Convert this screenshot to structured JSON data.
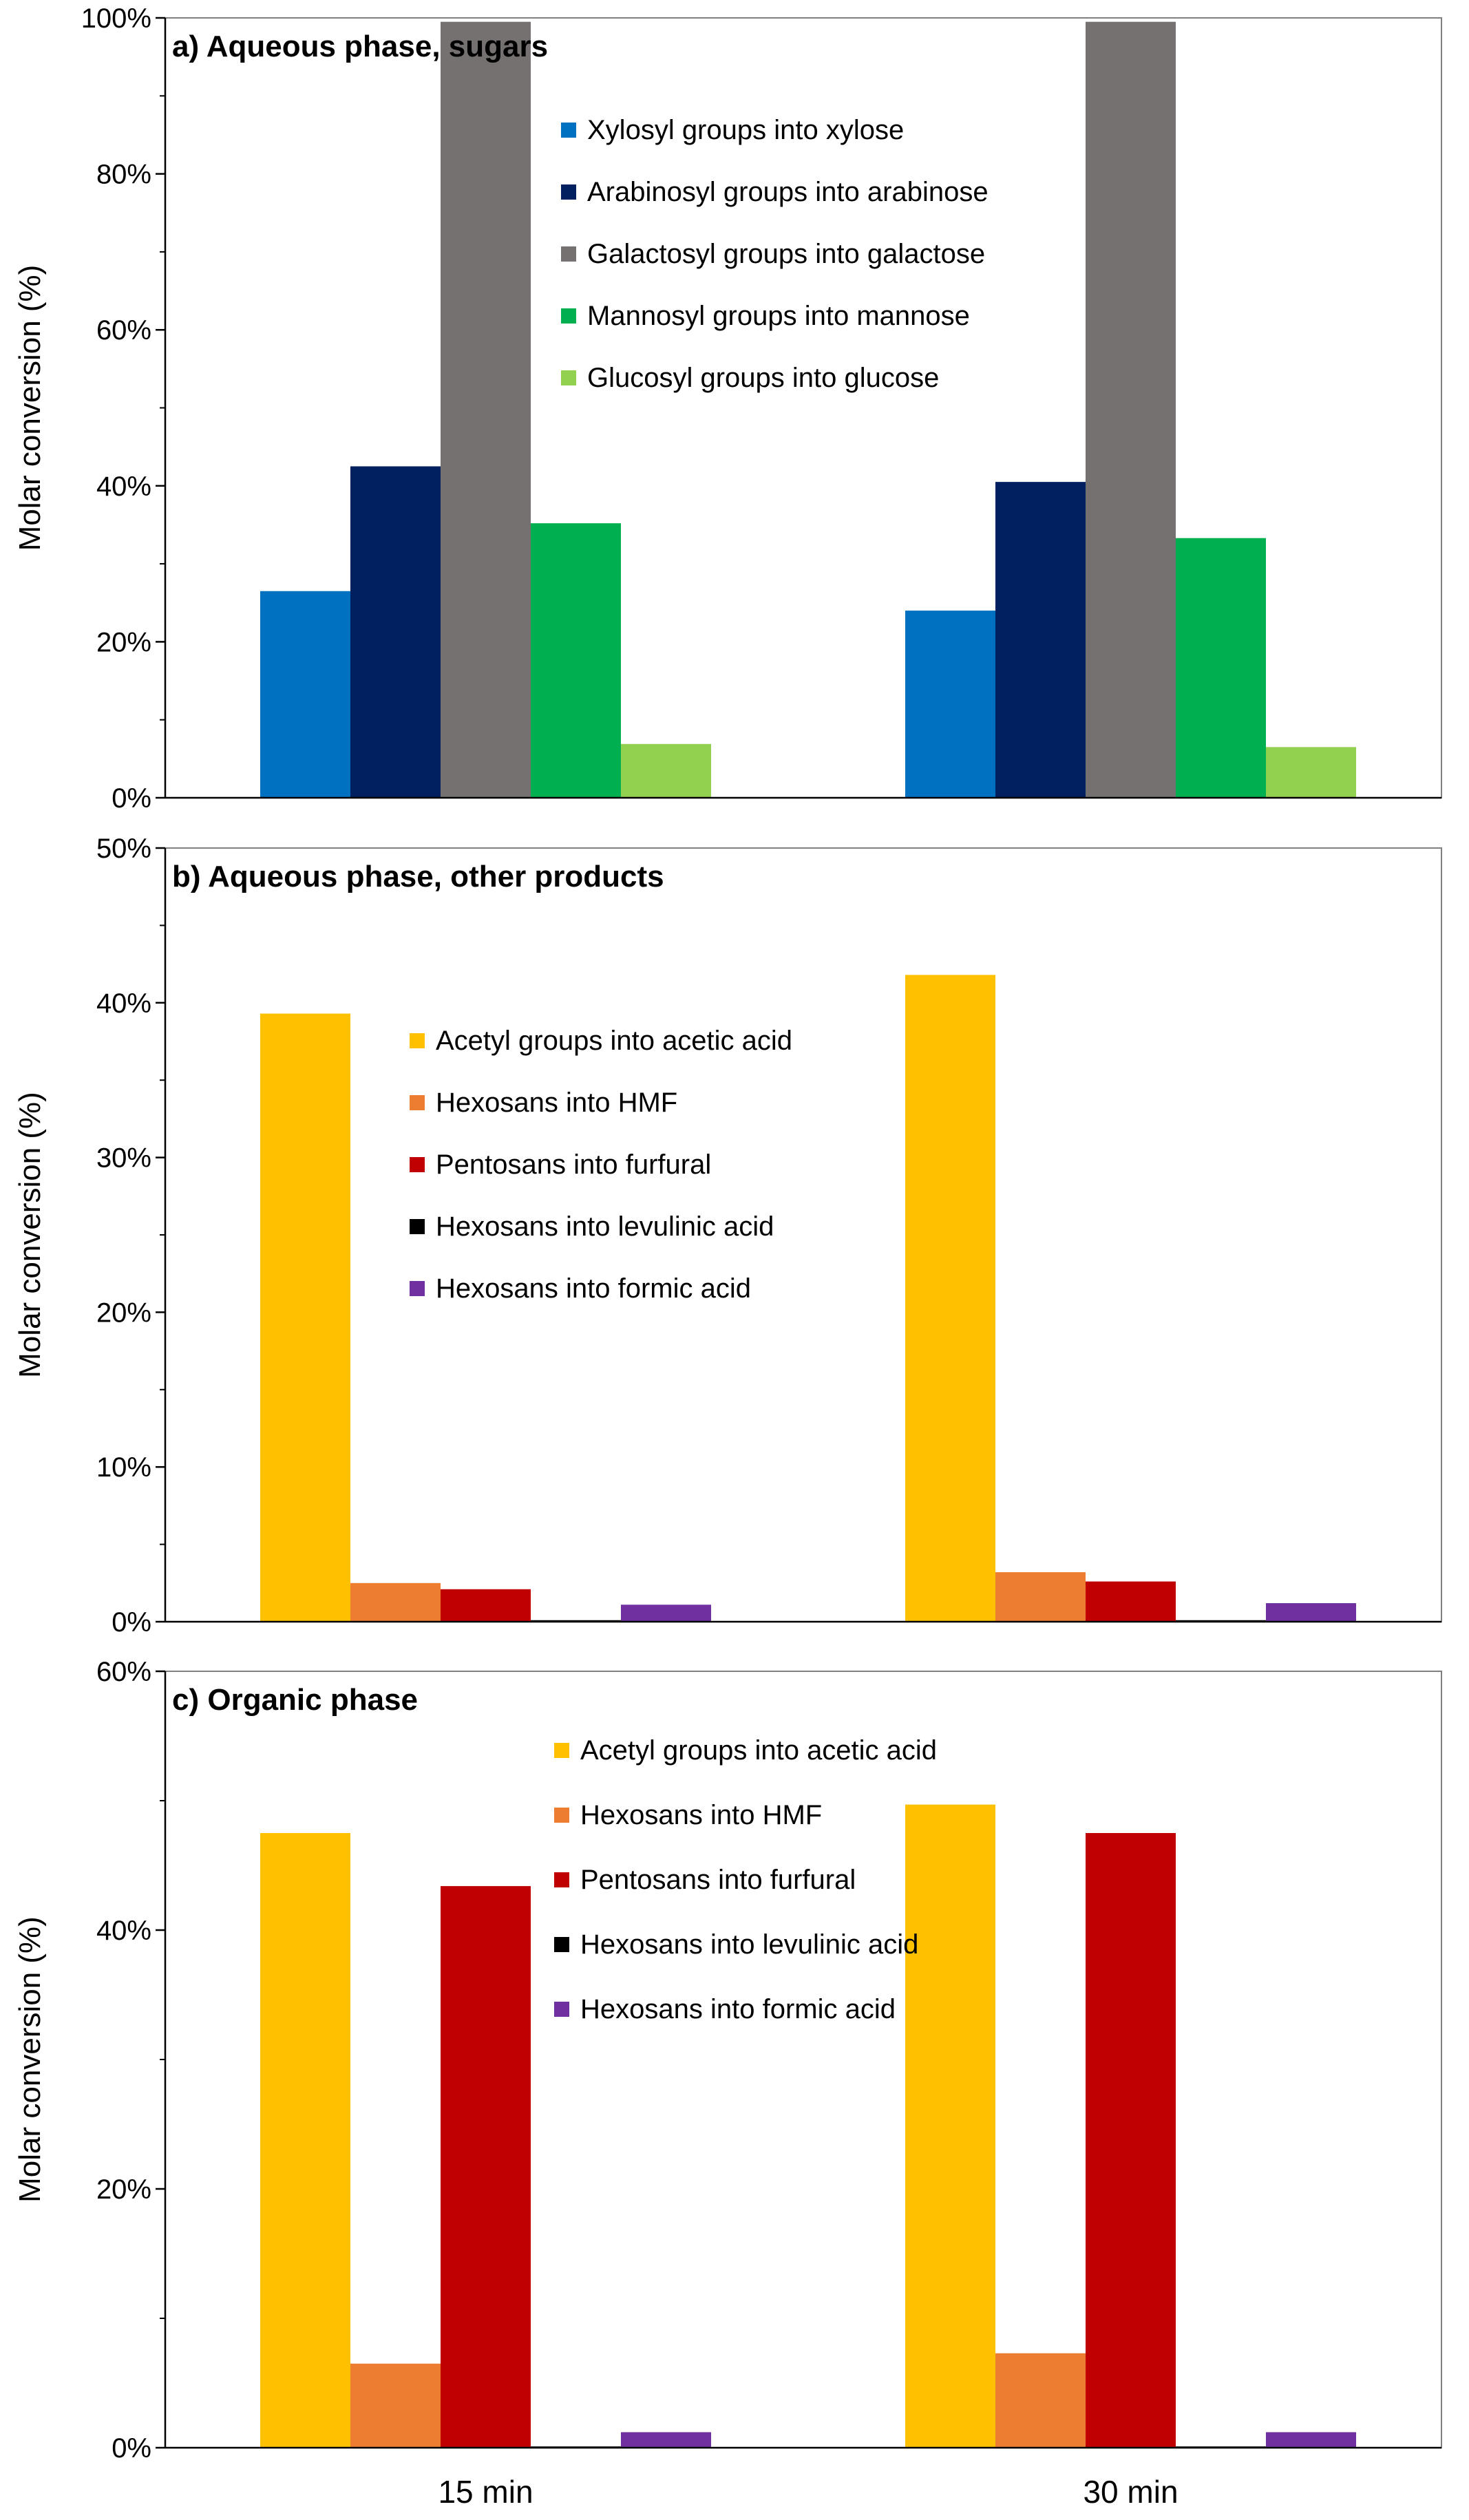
{
  "chart_data": [
    {
      "type": "bar",
      "title": "a) Aqueous phase, sugars",
      "ylabel": "Molar conversion (%)",
      "ylim": [
        0,
        100
      ],
      "yticks": [
        "0%",
        "20%",
        "40%",
        "60%",
        "80%",
        "100%"
      ],
      "categories": [
        "15 min",
        "30 min"
      ],
      "legend_position": "top-right",
      "series": [
        {
          "name": "Xylosyl groups into xylose",
          "color": "#0070C0",
          "values": [
            26.5,
            24.0
          ]
        },
        {
          "name": "Arabinosyl groups into arabinose",
          "color": "#002060",
          "values": [
            42.5,
            40.5
          ]
        },
        {
          "name": "Galactosyl groups into galactose",
          "color": "#767171",
          "values": [
            99.5,
            99.5
          ]
        },
        {
          "name": "Mannosyl groups into mannose",
          "color": "#00B050",
          "values": [
            35.2,
            33.3
          ]
        },
        {
          "name": "Glucosyl groups into glucose",
          "color": "#92D050",
          "values": [
            6.9,
            6.5
          ]
        }
      ]
    },
    {
      "type": "bar",
      "title": "b) Aqueous phase, other products",
      "ylabel": "Molar conversion (%)",
      "ylim": [
        0,
        50
      ],
      "yticks": [
        "0%",
        "10%",
        "20%",
        "30%",
        "40%",
        "50%"
      ],
      "categories": [
        "15 min",
        "30 min"
      ],
      "legend_position": "center",
      "series": [
        {
          "name": "Acetyl groups into acetic acid",
          "color": "#FFC000",
          "values": [
            39.3,
            41.8
          ]
        },
        {
          "name": "Hexosans into HMF",
          "color": "#ED7D31",
          "values": [
            2.5,
            3.2
          ]
        },
        {
          "name": "Pentosans into furfural",
          "color": "#C00000",
          "values": [
            2.1,
            2.6
          ]
        },
        {
          "name": "Hexosans into levulinic acid",
          "color": "#000000",
          "values": [
            0.1,
            0.1
          ]
        },
        {
          "name": "Hexosans into formic acid",
          "color": "#7030A0",
          "values": [
            1.1,
            1.2
          ]
        }
      ]
    },
    {
      "type": "bar",
      "title": "c) Organic phase",
      "ylabel": "Molar conversion (%)",
      "ylim": [
        0,
        60
      ],
      "yticks": [
        "0%",
        "20%",
        "40%",
        "60%"
      ],
      "categories": [
        "15 min",
        "30 min"
      ],
      "legend_position": "top-center",
      "series": [
        {
          "name": "Acetyl groups into acetic acid",
          "color": "#FFC000",
          "values": [
            47.5,
            49.7
          ]
        },
        {
          "name": "Hexosans into HMF",
          "color": "#ED7D31",
          "values": [
            6.5,
            7.3
          ]
        },
        {
          "name": "Pentosans into furfural",
          "color": "#C00000",
          "values": [
            43.4,
            47.5
          ]
        },
        {
          "name": "Hexosans into levulinic acid",
          "color": "#000000",
          "values": [
            0.1,
            0.1
          ]
        },
        {
          "name": "Hexosans into formic acid",
          "color": "#7030A0",
          "values": [
            1.2,
            1.2
          ]
        }
      ]
    }
  ]
}
